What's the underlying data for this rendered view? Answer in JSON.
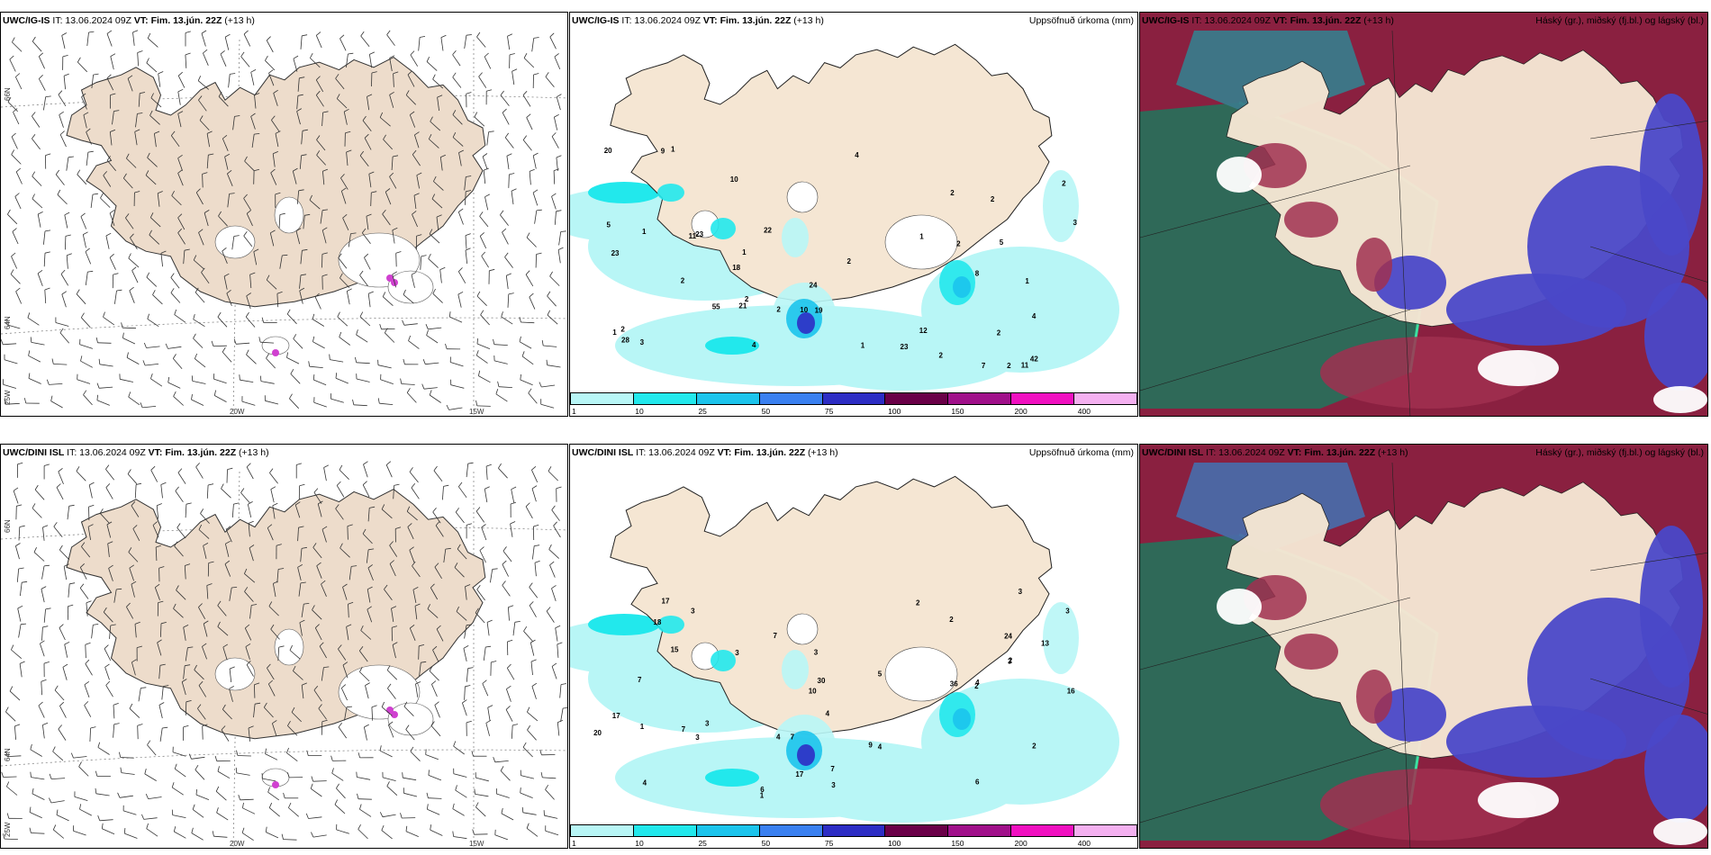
{
  "panels": {
    "p1": {
      "model": "UWC/IG-IS",
      "it": "IT: 13.06.2024 09Z",
      "vt_label": "VT:",
      "vt": "Fim. 13.jún. 22Z",
      "lead": "(+13 h)",
      "right_title": ""
    },
    "p2": {
      "model": "UWC/IG-IS",
      "it": "IT: 13.06.2024 09Z",
      "vt_label": "VT:",
      "vt": "Fim. 13.jún. 22Z",
      "lead": "(+13 h)",
      "right_title": "Uppsöfnuð úrkoma (mm)"
    },
    "p3": {
      "model": "UWC/IG-IS",
      "it": "IT: 13.06.2024 09Z",
      "vt_label": "VT:",
      "vt": "Fim. 13.jún. 22Z",
      "lead": "(+13 h)",
      "right_title": "Háský (gr.), miðský (fj.bl.) og lágský (bl.)"
    },
    "p4": {
      "model": "UWC/DINI ISL",
      "it": "IT: 13.06.2024 09Z",
      "vt_label": "VT:",
      "vt": "Fim. 13.jún. 22Z",
      "lead": "(+13 h)",
      "right_title": ""
    },
    "p5": {
      "model": "UWC/DINI ISL",
      "it": "IT: 13.06.2024 09Z",
      "vt_label": "VT:",
      "vt": "Fim. 13.jún. 22Z",
      "lead": "(+13 h)",
      "right_title": "Uppsöfnuð úrkoma (mm)"
    },
    "p6": {
      "model": "UWC/DINI ISL",
      "it": "IT: 13.06.2024 09Z",
      "vt_label": "VT:",
      "vt": "Fim. 13.jún. 22Z",
      "lead": "(+13 h)",
      "right_title": "Háský (gr.), miðský (fj.bl.) og lágský (bl.)"
    }
  },
  "grid_labels": {
    "lat66": "66N",
    "lat64": "64N",
    "lon25": "25W",
    "lon20": "20W",
    "lon15": "15W"
  },
  "colorbar": {
    "ticks": [
      "1",
      "10",
      "25",
      "50",
      "75",
      "100",
      "150",
      "200",
      "400"
    ],
    "colors": [
      "#b8f6f6",
      "#22e8ec",
      "#1cc4ec",
      "#3a80f0",
      "#2d2dc4",
      "#6a0048",
      "#a0108a",
      "#f010c0",
      "#f4b0f0"
    ]
  },
  "precip_labels_ig": [
    "24",
    "11",
    "9",
    "8",
    "11",
    "10",
    "10",
    "18",
    "21",
    "2",
    "5",
    "4",
    "20",
    "7",
    "1",
    "12",
    "2",
    "3",
    "2",
    "22",
    "2",
    "23",
    "23",
    "55",
    "2",
    "1",
    "1",
    "2",
    "2",
    "1",
    "2",
    "2",
    "3",
    "4",
    "2",
    "5",
    "1",
    "1",
    "2",
    "4",
    "23",
    "42",
    "1",
    "2",
    "19",
    "28"
  ],
  "precip_labels_dini": [
    "36",
    "6",
    "4",
    "4",
    "7",
    "7",
    "10",
    "7",
    "7",
    "16",
    "3",
    "3",
    "6",
    "13",
    "4",
    "3",
    "4",
    "3",
    "7",
    "5",
    "9",
    "18",
    "3",
    "2",
    "4",
    "2",
    "17",
    "15",
    "3",
    "24",
    "2",
    "3",
    "1",
    "2",
    "1",
    "3",
    "17",
    "17",
    "20",
    "30",
    "2",
    "3"
  ],
  "colors": {
    "land": "#f5e6d3",
    "land_wind": "#eddccb",
    "ice": "#ffffff",
    "high": "#2a6e5a",
    "mid": "#8a2040",
    "low": "#4a48c8"
  }
}
